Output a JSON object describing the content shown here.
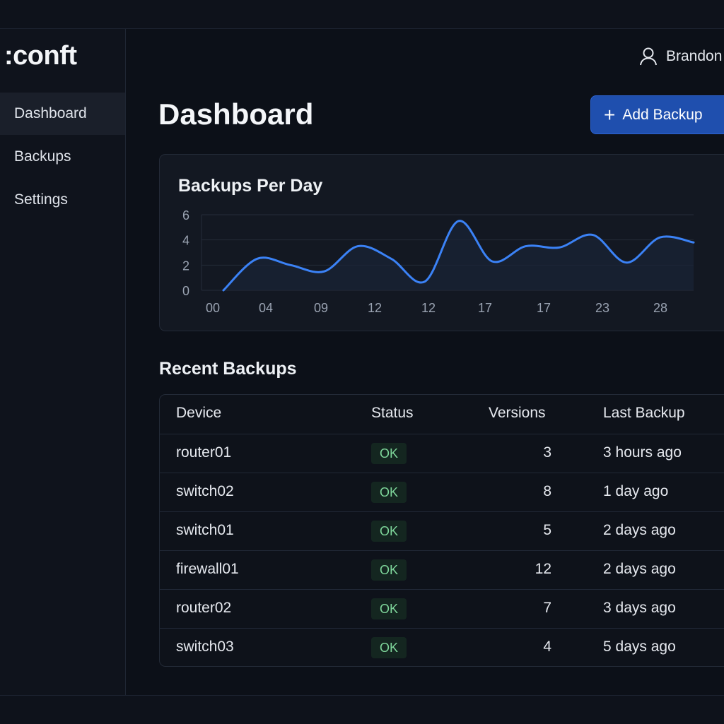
{
  "app": {
    "logo": ":conft"
  },
  "sidebar": {
    "items": [
      {
        "label": "Dashboard"
      },
      {
        "label": "Backups"
      },
      {
        "label": "Settings"
      }
    ]
  },
  "header": {
    "user_name": "Brandon",
    "page_title": "Dashboard",
    "add_button_label": "Add Backup"
  },
  "chart_data": {
    "type": "line",
    "title": "Backups Per Day",
    "x_tick_labels": [
      "00",
      "04",
      "09",
      "12",
      "12",
      "17",
      "17",
      "23",
      "28"
    ],
    "y_ticks": [
      0,
      2,
      4,
      6
    ],
    "ylim": [
      0,
      6
    ],
    "values": [
      0,
      2.5,
      2,
      1.5,
      3.5,
      2.5,
      0.7,
      5.5,
      2.3,
      3.5,
      3.4,
      4.4,
      2.2,
      4.2,
      3.8
    ],
    "color": "#3b82f6"
  },
  "recent": {
    "title": "Recent Backups",
    "columns": {
      "device": "Device",
      "status": "Status",
      "versions": "Versions",
      "last_backup": "Last Backup"
    },
    "rows": [
      {
        "device": "router01",
        "status": "OK",
        "versions": "3",
        "last": "3 hours ago"
      },
      {
        "device": "switch02",
        "status": "OK",
        "versions": "8",
        "last": "1 day ago"
      },
      {
        "device": "switch01",
        "status": "OK",
        "versions": "5",
        "last": "2 days ago"
      },
      {
        "device": "firewall01",
        "status": "OK",
        "versions": "12",
        "last": "2 days ago"
      },
      {
        "device": "router02",
        "status": "OK",
        "versions": "7",
        "last": "3 days ago"
      },
      {
        "device": "switch03",
        "status": "OK",
        "versions": "4",
        "last": "5 days ago"
      }
    ]
  }
}
